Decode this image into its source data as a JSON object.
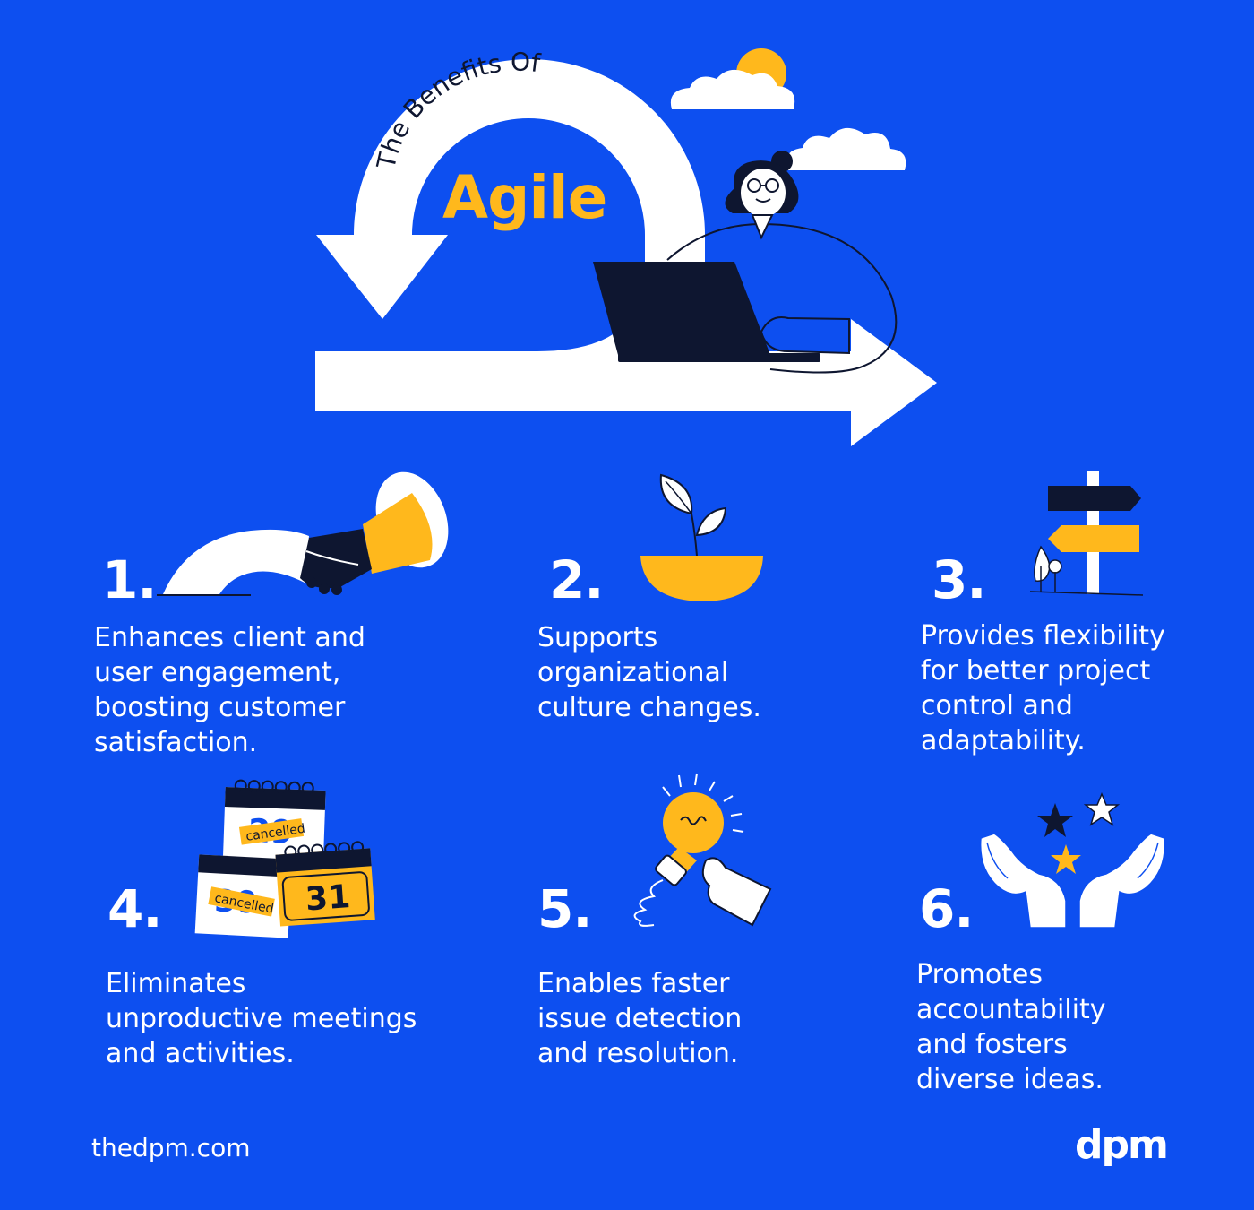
{
  "header": {
    "arc_text": "The Benefits Of",
    "title": "Agile"
  },
  "benefits": [
    {
      "number": "1.",
      "lines": [
        "Enhances client and",
        "user engagement,",
        "boosting customer",
        "satisfaction."
      ],
      "icon": "handshake-icon"
    },
    {
      "number": "2.",
      "lines": [
        "Supports",
        "organizational",
        "culture changes."
      ],
      "icon": "plant-bowl-icon"
    },
    {
      "number": "3.",
      "lines": [
        "Provides flexibility",
        "for better project",
        "control and",
        "adaptability."
      ],
      "icon": "signpost-icon"
    },
    {
      "number": "4.",
      "lines": [
        "Eliminates",
        "unproductive meetings",
        "and activities."
      ],
      "icon": "calendar-cancelled-icon"
    },
    {
      "number": "5.",
      "lines": [
        "Enables faster",
        "issue detection",
        "and resolution."
      ],
      "icon": "lightbulb-hand-icon"
    },
    {
      "number": "6.",
      "lines": [
        "Promotes",
        "accountability",
        "and fosters",
        "diverse ideas."
      ],
      "icon": "hands-stars-icon"
    }
  ],
  "calendar": {
    "stamp_text": "cancelled",
    "date_back": "29",
    "date_front_left": "30",
    "date_front_right": "31"
  },
  "footer": {
    "url": "thedpm.com",
    "logo": "dpm"
  },
  "colors": {
    "background": "#0D4FF0",
    "accent": "#FFB81C",
    "dark": "#0E1630",
    "white": "#FFFFFF"
  }
}
